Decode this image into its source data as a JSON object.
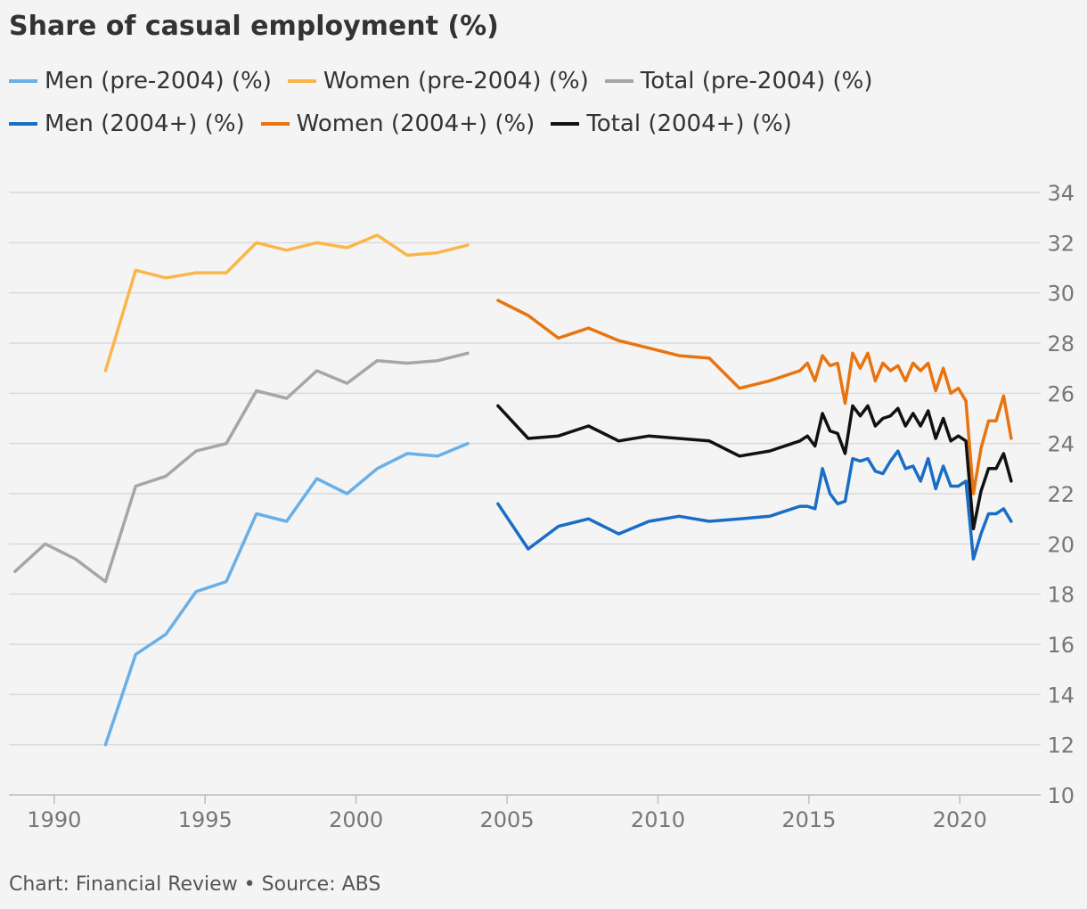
{
  "header": {
    "title": "Share of casual employment (%)"
  },
  "footer": {
    "text": "Chart: Financial Review • Source: ABS"
  },
  "chart_data": {
    "type": "line",
    "title": "Share of casual employment (%)",
    "xlabel": "",
    "ylabel": "",
    "xlim": [
      1988.5,
      2022.5
    ],
    "ylim": [
      10,
      34
    ],
    "x_ticks": [
      1990,
      1995,
      2000,
      2005,
      2010,
      2015,
      2020
    ],
    "y_ticks": [
      10,
      12,
      14,
      16,
      18,
      20,
      22,
      24,
      26,
      28,
      30,
      32,
      34
    ],
    "grid": true,
    "legend_position": "top",
    "series": [
      {
        "name": "Men (pre-2004) (%)",
        "color": "#6aafe6",
        "points": [
          [
            1991.7,
            12.0
          ],
          [
            1992.7,
            15.6
          ],
          [
            1993.7,
            16.4
          ],
          [
            1994.7,
            18.1
          ],
          [
            1995.7,
            18.5
          ],
          [
            1996.7,
            21.2
          ],
          [
            1997.7,
            20.9
          ],
          [
            1998.7,
            22.6
          ],
          [
            1999.7,
            22.0
          ],
          [
            2000.7,
            23.0
          ],
          [
            2001.7,
            23.6
          ],
          [
            2002.7,
            23.5
          ],
          [
            2003.7,
            24.0
          ]
        ]
      },
      {
        "name": "Women (pre-2004) (%)",
        "color": "#fbb64a",
        "points": [
          [
            1991.7,
            26.9
          ],
          [
            1992.7,
            30.9
          ],
          [
            1993.7,
            30.6
          ],
          [
            1994.7,
            30.8
          ],
          [
            1995.7,
            30.8
          ],
          [
            1996.7,
            32.0
          ],
          [
            1997.7,
            31.7
          ],
          [
            1998.7,
            32.0
          ],
          [
            1999.7,
            31.8
          ],
          [
            2000.7,
            32.3
          ],
          [
            2001.7,
            31.5
          ],
          [
            2002.7,
            31.6
          ],
          [
            2003.7,
            31.9
          ]
        ]
      },
      {
        "name": "Total (pre-2004) (%)",
        "color": "#a6a6a6",
        "points": [
          [
            1988.7,
            18.9
          ],
          [
            1989.7,
            20.0
          ],
          [
            1990.7,
            19.4
          ],
          [
            1991.7,
            18.5
          ],
          [
            1992.7,
            22.3
          ],
          [
            1993.7,
            22.7
          ],
          [
            1994.7,
            23.7
          ],
          [
            1995.7,
            24.0
          ],
          [
            1996.7,
            26.1
          ],
          [
            1997.7,
            25.8
          ],
          [
            1998.7,
            26.9
          ],
          [
            1999.7,
            26.4
          ],
          [
            2000.7,
            27.3
          ],
          [
            2001.7,
            27.2
          ],
          [
            2002.7,
            27.3
          ],
          [
            2003.7,
            27.6
          ]
        ]
      },
      {
        "name": "Men (2004+) (%)",
        "color": "#1a6dc6",
        "points": [
          [
            2004.7,
            21.6
          ],
          [
            2005.7,
            19.8
          ],
          [
            2006.7,
            20.7
          ],
          [
            2007.7,
            21.0
          ],
          [
            2008.7,
            20.4
          ],
          [
            2009.7,
            20.9
          ],
          [
            2010.7,
            21.1
          ],
          [
            2011.7,
            20.9
          ],
          [
            2012.7,
            21.0
          ],
          [
            2013.7,
            21.1
          ],
          [
            2014.7,
            21.5
          ],
          [
            2014.95,
            21.5
          ],
          [
            2015.2,
            21.4
          ],
          [
            2015.45,
            23.0
          ],
          [
            2015.7,
            22.0
          ],
          [
            2015.95,
            21.6
          ],
          [
            2016.2,
            21.7
          ],
          [
            2016.45,
            23.4
          ],
          [
            2016.7,
            23.3
          ],
          [
            2016.95,
            23.4
          ],
          [
            2017.2,
            22.9
          ],
          [
            2017.45,
            22.8
          ],
          [
            2017.7,
            23.3
          ],
          [
            2017.95,
            23.7
          ],
          [
            2018.2,
            23.0
          ],
          [
            2018.45,
            23.1
          ],
          [
            2018.7,
            22.5
          ],
          [
            2018.95,
            23.4
          ],
          [
            2019.2,
            22.2
          ],
          [
            2019.45,
            23.1
          ],
          [
            2019.7,
            22.3
          ],
          [
            2019.95,
            22.3
          ],
          [
            2020.2,
            22.5
          ],
          [
            2020.45,
            19.4
          ],
          [
            2020.7,
            20.4
          ],
          [
            2020.95,
            21.2
          ],
          [
            2021.2,
            21.2
          ],
          [
            2021.45,
            21.4
          ],
          [
            2021.7,
            20.9
          ]
        ]
      },
      {
        "name": "Women (2004+) (%)",
        "color": "#e8740f",
        "points": [
          [
            2004.7,
            29.7
          ],
          [
            2005.7,
            29.1
          ],
          [
            2006.7,
            28.2
          ],
          [
            2007.7,
            28.6
          ],
          [
            2008.7,
            28.1
          ],
          [
            2009.7,
            27.8
          ],
          [
            2010.7,
            27.5
          ],
          [
            2011.7,
            27.4
          ],
          [
            2012.7,
            26.2
          ],
          [
            2013.7,
            26.5
          ],
          [
            2014.7,
            26.9
          ],
          [
            2014.95,
            27.2
          ],
          [
            2015.2,
            26.5
          ],
          [
            2015.45,
            27.5
          ],
          [
            2015.7,
            27.1
          ],
          [
            2015.95,
            27.2
          ],
          [
            2016.2,
            25.6
          ],
          [
            2016.45,
            27.6
          ],
          [
            2016.7,
            27.0
          ],
          [
            2016.95,
            27.6
          ],
          [
            2017.2,
            26.5
          ],
          [
            2017.45,
            27.2
          ],
          [
            2017.7,
            26.9
          ],
          [
            2017.95,
            27.1
          ],
          [
            2018.2,
            26.5
          ],
          [
            2018.45,
            27.2
          ],
          [
            2018.7,
            26.9
          ],
          [
            2018.95,
            27.2
          ],
          [
            2019.2,
            26.1
          ],
          [
            2019.45,
            27.0
          ],
          [
            2019.7,
            26.0
          ],
          [
            2019.95,
            26.2
          ],
          [
            2020.2,
            25.7
          ],
          [
            2020.45,
            22.0
          ],
          [
            2020.7,
            23.8
          ],
          [
            2020.95,
            24.9
          ],
          [
            2021.2,
            24.9
          ],
          [
            2021.45,
            25.9
          ],
          [
            2021.7,
            24.2
          ]
        ]
      },
      {
        "name": "Total (2004+) (%)",
        "color": "#111111",
        "points": [
          [
            2004.7,
            25.5
          ],
          [
            2005.7,
            24.2
          ],
          [
            2006.7,
            24.3
          ],
          [
            2007.7,
            24.7
          ],
          [
            2008.7,
            24.1
          ],
          [
            2009.7,
            24.3
          ],
          [
            2010.7,
            24.2
          ],
          [
            2011.7,
            24.1
          ],
          [
            2012.7,
            23.5
          ],
          [
            2013.7,
            23.7
          ],
          [
            2014.7,
            24.1
          ],
          [
            2014.95,
            24.3
          ],
          [
            2015.2,
            23.9
          ],
          [
            2015.45,
            25.2
          ],
          [
            2015.7,
            24.5
          ],
          [
            2015.95,
            24.4
          ],
          [
            2016.2,
            23.6
          ],
          [
            2016.45,
            25.5
          ],
          [
            2016.7,
            25.1
          ],
          [
            2016.95,
            25.5
          ],
          [
            2017.2,
            24.7
          ],
          [
            2017.45,
            25.0
          ],
          [
            2017.7,
            25.1
          ],
          [
            2017.95,
            25.4
          ],
          [
            2018.2,
            24.7
          ],
          [
            2018.45,
            25.2
          ],
          [
            2018.7,
            24.7
          ],
          [
            2018.95,
            25.3
          ],
          [
            2019.2,
            24.2
          ],
          [
            2019.45,
            25.0
          ],
          [
            2019.7,
            24.1
          ],
          [
            2019.95,
            24.3
          ],
          [
            2020.2,
            24.1
          ],
          [
            2020.45,
            20.6
          ],
          [
            2020.7,
            22.1
          ],
          [
            2020.95,
            23.0
          ],
          [
            2021.2,
            23.0
          ],
          [
            2021.45,
            23.6
          ],
          [
            2021.7,
            22.5
          ]
        ]
      }
    ]
  }
}
